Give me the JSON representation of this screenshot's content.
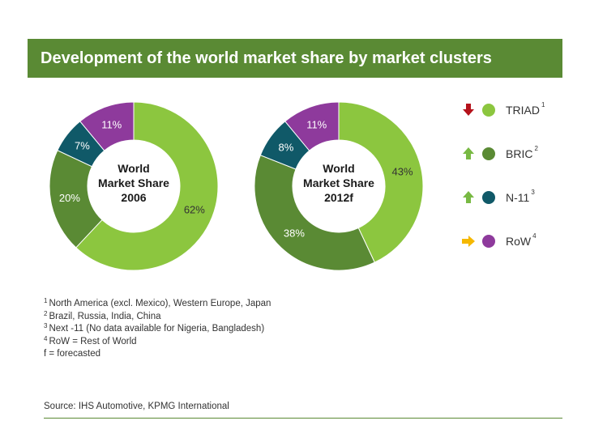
{
  "title": "Development of the world market share by market clusters",
  "colors": {
    "TRIAD": "#8cc63f",
    "BRIC": "#5a8a34",
    "N-11": "#105968",
    "RoW": "#8e3a9c",
    "title_bar": "#5a8a34",
    "arrow_down": "#b5121b",
    "arrow_up": "#78b943",
    "arrow_right": "#f5b800"
  },
  "chart_data": [
    {
      "type": "pie",
      "variant": "donut",
      "center_label": [
        "World",
        "Market Share",
        "2006"
      ],
      "slices": [
        {
          "name": "TRIAD",
          "value": 62,
          "label": "62%"
        },
        {
          "name": "BRIC",
          "value": 20,
          "label": "20%"
        },
        {
          "name": "N-11",
          "value": 7,
          "label": "7%"
        },
        {
          "name": "RoW",
          "value": 11,
          "label": "11%"
        }
      ]
    },
    {
      "type": "pie",
      "variant": "donut",
      "center_label": [
        "World",
        "Market Share",
        "2012f"
      ],
      "slices": [
        {
          "name": "TRIAD",
          "value": 43,
          "label": "43%"
        },
        {
          "name": "BRIC",
          "value": 38,
          "label": "38%"
        },
        {
          "name": "N-11",
          "value": 8,
          "label": "8%"
        },
        {
          "name": "RoW",
          "value": 11,
          "label": "11%"
        }
      ]
    }
  ],
  "legend": [
    {
      "name": "TRIAD",
      "sup": "1",
      "trend": "down",
      "trend_icon": "down-arrow-icon"
    },
    {
      "name": "BRIC",
      "sup": "2",
      "trend": "up",
      "trend_icon": "up-arrow-icon"
    },
    {
      "name": "N-11",
      "sup": "3",
      "trend": "up",
      "trend_icon": "up-arrow-icon"
    },
    {
      "name": "RoW",
      "sup": "4",
      "trend": "right",
      "trend_icon": "right-arrow-icon"
    }
  ],
  "footnotes": [
    {
      "sup": "1",
      "text": "North America (excl. Mexico), Western Europe, Japan"
    },
    {
      "sup": "2",
      "text": "Brazil, Russia, India, China"
    },
    {
      "sup": "3",
      "text": "Next -11 (No data available for Nigeria, Bangladesh)"
    },
    {
      "sup": "4",
      "text": "RoW = Rest of World"
    },
    {
      "sup": "",
      "text": "f = forecasted"
    }
  ],
  "source": "Source: IHS Automotive, KPMG International"
}
